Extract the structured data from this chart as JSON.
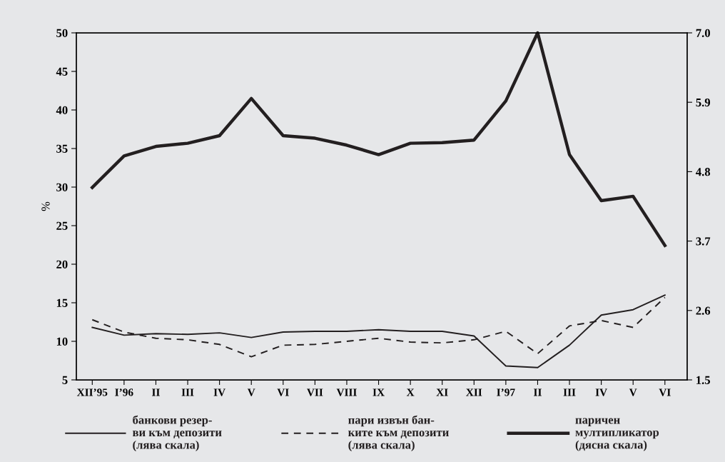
{
  "chart_data": {
    "type": "line",
    "ylabel": "%",
    "categories": [
      "XII’95",
      "I’96",
      "II",
      "III",
      "IV",
      "V",
      "VI",
      "VII",
      "VIII",
      "IX",
      "X",
      "XI",
      "XII",
      "I’97",
      "II",
      "III",
      "IV",
      "V",
      "VI"
    ],
    "series": [
      {
        "name": "банкови резер-\nви към депозити\n(лява скала)",
        "color": "#231f20",
        "line_style": "solid",
        "values": [
          11.8,
          10.8,
          11.0,
          10.9,
          11.1,
          10.5,
          11.2,
          11.3,
          11.3,
          11.5,
          11.3,
          11.3,
          10.7,
          6.8,
          6.6,
          9.5,
          13.4,
          14.1,
          16.0
        ]
      },
      {
        "name": "пари извън бан-\nките към депозити\n(лява скала)",
        "color": "#231f20",
        "line_style": "dashed",
        "values": [
          12.8,
          11.2,
          10.4,
          10.2,
          9.6,
          8.0,
          9.5,
          9.6,
          10.0,
          10.4,
          9.9,
          9.8,
          10.2,
          11.3,
          8.4,
          12.0,
          12.7,
          11.8,
          15.7
        ]
      },
      {
        "name": "паричен\nмултипликатор\n(дясна скала)",
        "color": "#231f20",
        "line_style": "solid",
        "axis": "y2",
        "values": [
          4.55,
          5.05,
          5.2,
          5.25,
          5.37,
          5.96,
          5.37,
          5.33,
          5.22,
          5.07,
          5.25,
          5.26,
          5.3,
          5.92,
          7.0,
          5.07,
          4.34,
          4.41,
          3.63
        ]
      }
    ],
    "ylim": [
      5,
      50
    ],
    "yticks": [
      5,
      10,
      15,
      20,
      25,
      30,
      35,
      40,
      45,
      50
    ],
    "y2lim": [
      1.5,
      7.0
    ],
    "y2ticks": [
      {
        "value": 1.5,
        "label": "1.5"
      },
      {
        "value": 2.6,
        "label": "2.6"
      },
      {
        "value": 3.7,
        "label": "3.7"
      },
      {
        "value": 4.8,
        "label": "4.8"
      },
      {
        "value": 5.9,
        "label": "5.9"
      },
      {
        "value": 7.0,
        "label": "7.0"
      }
    ],
    "grid": false,
    "legend": "bottom",
    "marker": "none"
  }
}
